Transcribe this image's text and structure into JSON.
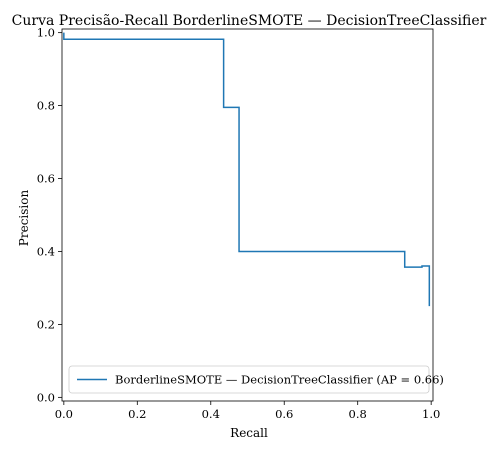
{
  "chart_data": {
    "type": "line",
    "title": "Curva Precisão-Recall BorderlineSMOTE — DecisionTreeClassifier",
    "xlabel": "Recall",
    "ylabel": "Precision",
    "xlim": [
      0.0,
      1.0
    ],
    "ylim": [
      0.0,
      1.0
    ],
    "xticks": [
      "0.0",
      "0.2",
      "0.4",
      "0.6",
      "0.8",
      "1.0"
    ],
    "yticks": [
      "0.0",
      "0.2",
      "0.4",
      "0.6",
      "0.8",
      "1.0"
    ],
    "grid": false,
    "legend_position": "lower-right",
    "series": [
      {
        "name": "BorderlineSMOTE — DecisionTreeClassifier (AP = 0.66)",
        "color": "#1f77b4",
        "step": true,
        "points": [
          [
            0.0,
            1.0
          ],
          [
            0.0,
            0.982
          ],
          [
            0.435,
            0.982
          ],
          [
            0.435,
            0.795
          ],
          [
            0.477,
            0.795
          ],
          [
            0.477,
            0.4
          ],
          [
            0.928,
            0.4
          ],
          [
            0.928,
            0.357
          ],
          [
            0.975,
            0.357
          ],
          [
            0.975,
            0.36
          ],
          [
            0.995,
            0.36
          ],
          [
            0.995,
            0.25
          ]
        ]
      }
    ]
  }
}
